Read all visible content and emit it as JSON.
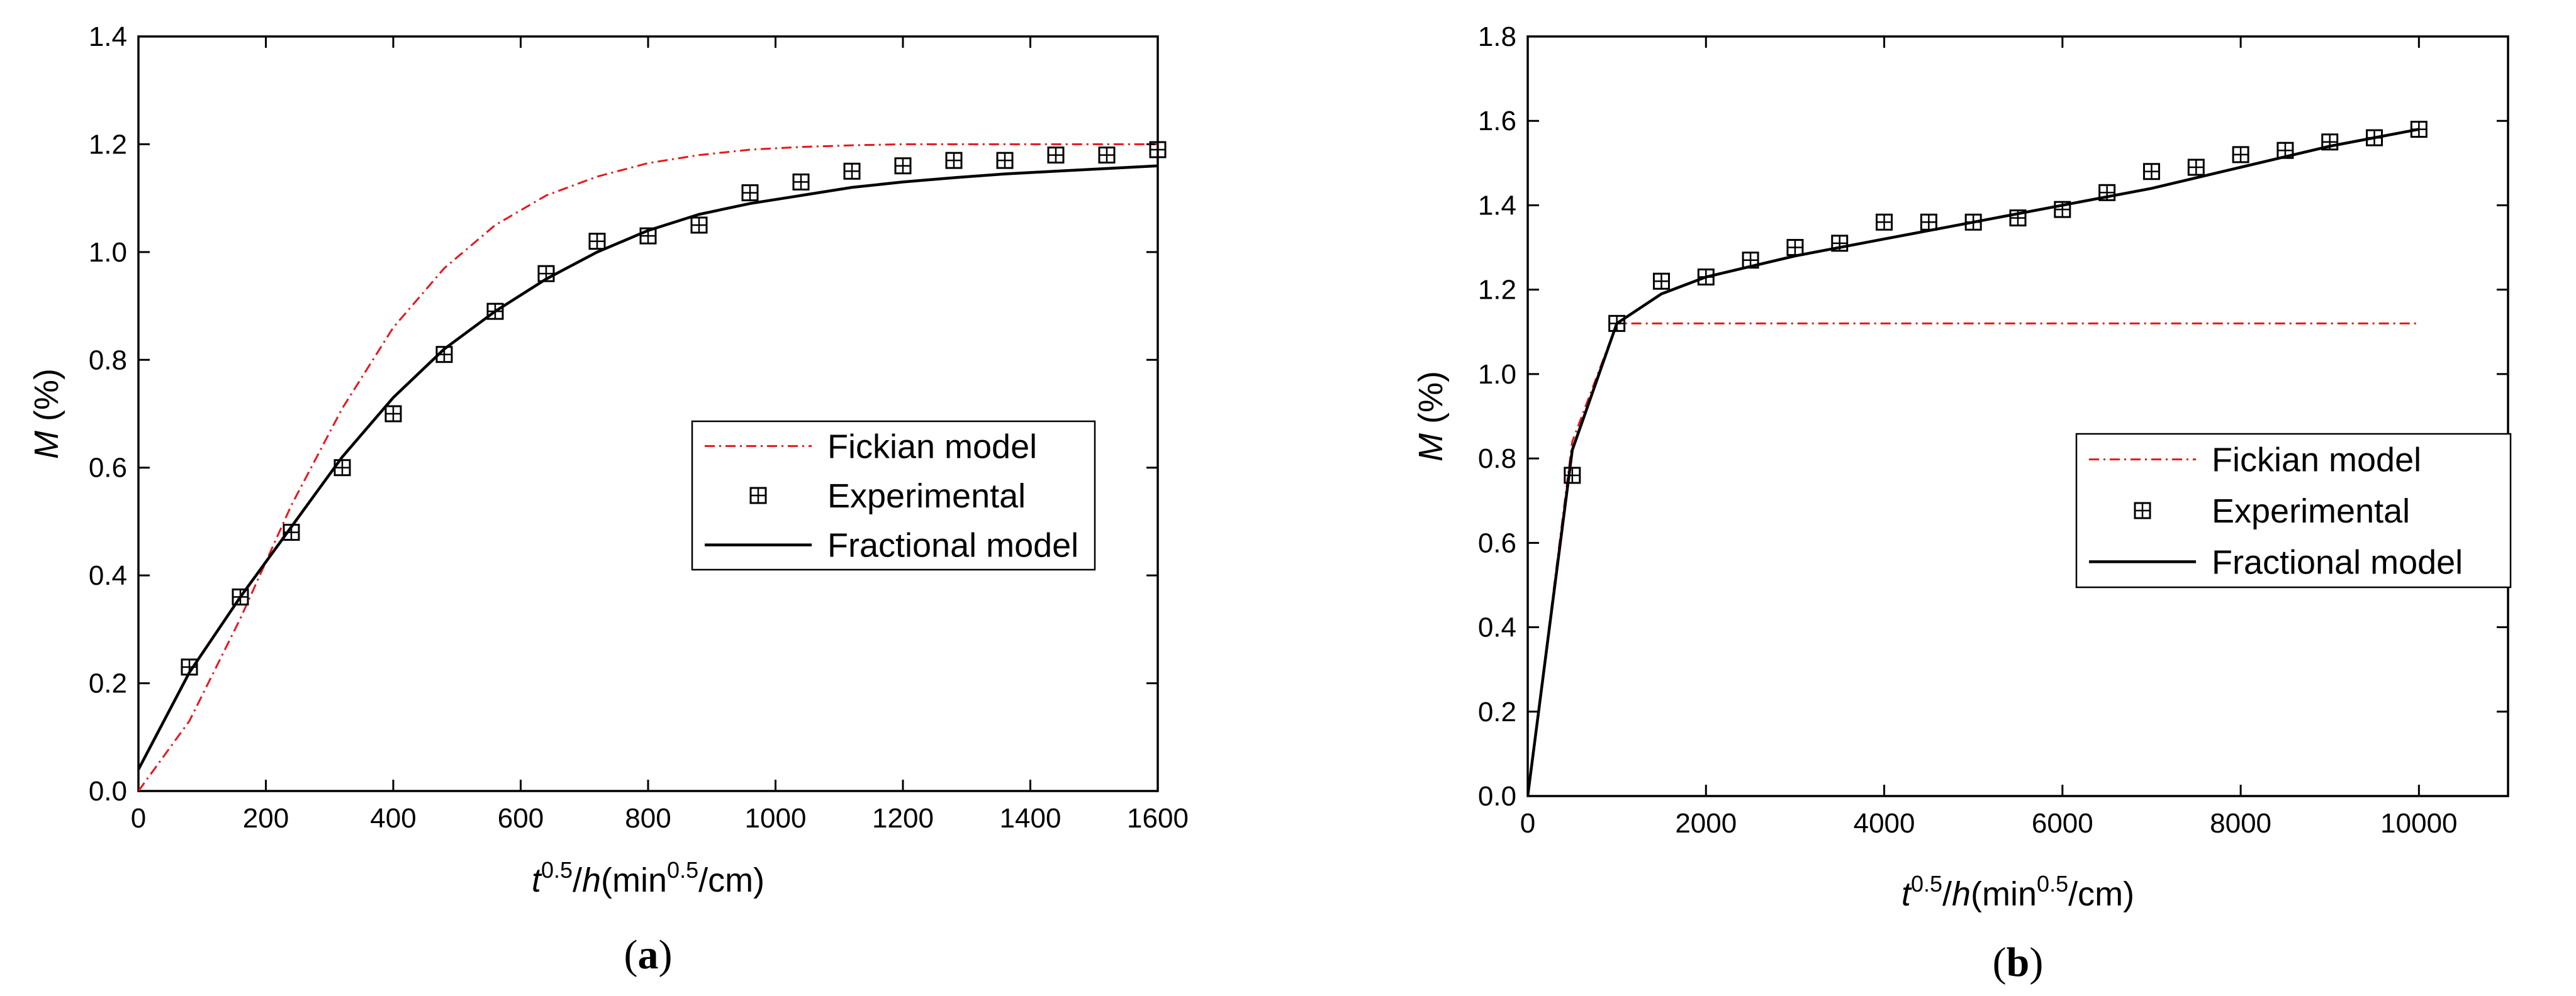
{
  "chart_data": [
    {
      "type": "line",
      "panel_label": "a",
      "xlabel": {
        "base": "t",
        "sup": "0.5",
        "mid": "/h(min",
        "sup2": "0.5",
        "tail": "/cm)"
      },
      "ylabel": {
        "var": "M",
        "unit": " (%)"
      },
      "xlim": [
        0,
        1600
      ],
      "ylim": [
        0,
        1.4
      ],
      "xticks": [
        0,
        200,
        400,
        600,
        800,
        1000,
        1200,
        1400,
        1600
      ],
      "yticks": [
        0.0,
        0.2,
        0.4,
        0.6,
        0.8,
        1.0,
        1.2,
        1.4
      ],
      "xtick_labels": [
        "0",
        "200",
        "400",
        "600",
        "800",
        "1000",
        "1200",
        "1400",
        "1600"
      ],
      "ytick_labels": [
        "0.0",
        "0.2",
        "0.4",
        "0.6",
        "0.8",
        "1.0",
        "1.2",
        "1.4"
      ],
      "legend_position": "center-right",
      "series": [
        {
          "name": "Fickian model",
          "style": "dashdot",
          "color": "#e8151b",
          "x": [
            0,
            80,
            160,
            240,
            320,
            400,
            480,
            560,
            640,
            720,
            800,
            880,
            960,
            1040,
            1120,
            1200,
            1280,
            1360,
            1440,
            1520,
            1600
          ],
          "y": [
            0,
            0.13,
            0.32,
            0.53,
            0.71,
            0.86,
            0.97,
            1.05,
            1.105,
            1.14,
            1.165,
            1.18,
            1.19,
            1.195,
            1.198,
            1.2,
            1.2,
            1.2,
            1.2,
            1.2,
            1.2
          ]
        },
        {
          "name": "Experimental",
          "style": "marker",
          "color": "#000000",
          "x": [
            80,
            160,
            240,
            320,
            400,
            480,
            560,
            640,
            720,
            800,
            880,
            960,
            1040,
            1120,
            1200,
            1280,
            1360,
            1440,
            1520,
            1600
          ],
          "y": [
            0.23,
            0.36,
            0.48,
            0.6,
            0.7,
            0.81,
            0.89,
            0.96,
            1.02,
            1.03,
            1.05,
            1.11,
            1.13,
            1.15,
            1.16,
            1.17,
            1.17,
            1.18,
            1.18,
            1.19
          ]
        },
        {
          "name": "Fractional model",
          "style": "solid",
          "color": "#000000",
          "x": [
            0,
            80,
            160,
            240,
            320,
            400,
            480,
            560,
            640,
            720,
            800,
            880,
            960,
            1040,
            1120,
            1200,
            1280,
            1360,
            1440,
            1520,
            1600
          ],
          "y": [
            0.04,
            0.22,
            0.36,
            0.49,
            0.62,
            0.73,
            0.82,
            0.89,
            0.95,
            1.0,
            1.04,
            1.07,
            1.09,
            1.105,
            1.12,
            1.13,
            1.138,
            1.145,
            1.15,
            1.155,
            1.16
          ]
        }
      ]
    },
    {
      "type": "line",
      "panel_label": "b",
      "xlabel": {
        "base": "t",
        "sup": "0.5",
        "mid": "/h(min",
        "sup2": "0.5",
        "tail": "/cm)"
      },
      "ylabel": {
        "var": "M",
        "unit": " (%)"
      },
      "xlim": [
        0,
        11000
      ],
      "ylim": [
        0,
        1.8
      ],
      "xticks": [
        0,
        2000,
        4000,
        6000,
        8000,
        10000
      ],
      "yticks": [
        0.0,
        0.2,
        0.4,
        0.6,
        0.8,
        1.0,
        1.2,
        1.4,
        1.6,
        1.8
      ],
      "xtick_labels": [
        "0",
        "2000",
        "4000",
        "6000",
        "8000",
        "10000"
      ],
      "ytick_labels": [
        "0.0",
        "0.2",
        "0.4",
        "0.6",
        "0.8",
        "1.0",
        "1.2",
        "1.4",
        "1.6",
        "1.8"
      ],
      "legend_position": "center-right",
      "series": [
        {
          "name": "Fickian model",
          "style": "dashdot",
          "color": "#e8151b",
          "x": [
            0,
            500,
            1000,
            10000
          ],
          "y": [
            0,
            0.84,
            1.12,
            1.12
          ]
        },
        {
          "name": "Experimental",
          "style": "marker",
          "color": "#000000",
          "x": [
            500,
            1000,
            1500,
            2000,
            2500,
            3000,
            3500,
            4000,
            4500,
            5000,
            5500,
            6000,
            6500,
            7000,
            7500,
            8000,
            8500,
            9000,
            9500,
            10000
          ],
          "y": [
            0.76,
            1.12,
            1.22,
            1.23,
            1.27,
            1.3,
            1.31,
            1.36,
            1.36,
            1.36,
            1.37,
            1.39,
            1.43,
            1.48,
            1.49,
            1.52,
            1.53,
            1.55,
            1.56,
            1.58
          ]
        },
        {
          "name": "Fractional model",
          "style": "solid",
          "color": "#000000",
          "x": [
            0,
            500,
            1000,
            1500,
            2000,
            3000,
            4000,
            5000,
            6000,
            7000,
            8000,
            9000,
            10000
          ],
          "y": [
            0,
            0.82,
            1.12,
            1.19,
            1.23,
            1.28,
            1.32,
            1.36,
            1.4,
            1.44,
            1.49,
            1.54,
            1.58
          ]
        }
      ]
    }
  ]
}
